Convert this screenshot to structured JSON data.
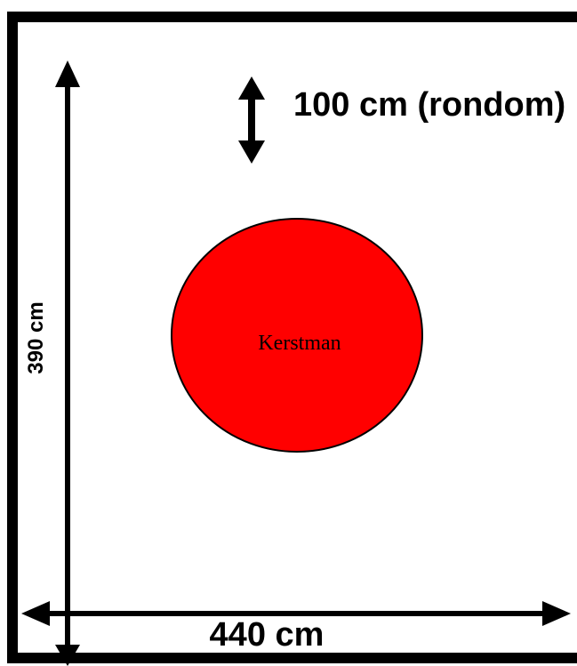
{
  "diagram": {
    "height_label": "390 cm",
    "width_label": "440 cm",
    "distance_label": "100 cm (rondom)",
    "circle_label": "Kerstman"
  }
}
